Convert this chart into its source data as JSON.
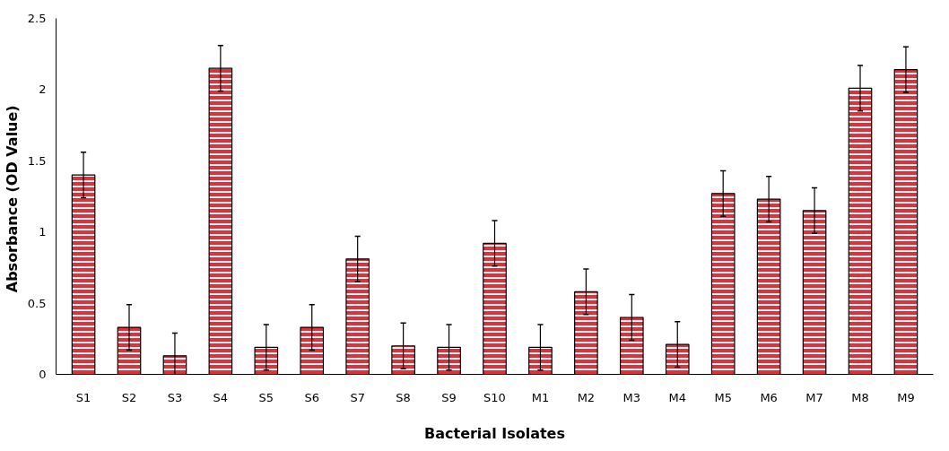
{
  "chart_data": {
    "type": "bar",
    "xlabel": "Bacterial Isolates",
    "ylabel": "Absorbance  (OD Value)",
    "categories": [
      "S1",
      "S2",
      "S3",
      "S4",
      "S5",
      "S6",
      "S7",
      "S8",
      "S9",
      "S10",
      "M1",
      "M2",
      "M3",
      "M4",
      "M5",
      "M6",
      "M7",
      "M8",
      "M9"
    ],
    "values": [
      1.4,
      0.33,
      0.13,
      2.15,
      0.19,
      0.33,
      0.81,
      0.2,
      0.19,
      0.92,
      0.19,
      0.58,
      0.4,
      0.21,
      1.27,
      1.23,
      1.15,
      2.01,
      2.14
    ],
    "errors": [
      0.16,
      0.16,
      0.16,
      0.16,
      0.16,
      0.16,
      0.16,
      0.16,
      0.16,
      0.16,
      0.16,
      0.16,
      0.16,
      0.16,
      0.16,
      0.16,
      0.16,
      0.16,
      0.16
    ],
    "color": "#e0303a",
    "ylim": [
      0,
      2.5
    ],
    "yticks": [
      0,
      0.5,
      1,
      1.5,
      2,
      2.5
    ],
    "grid": false
  }
}
